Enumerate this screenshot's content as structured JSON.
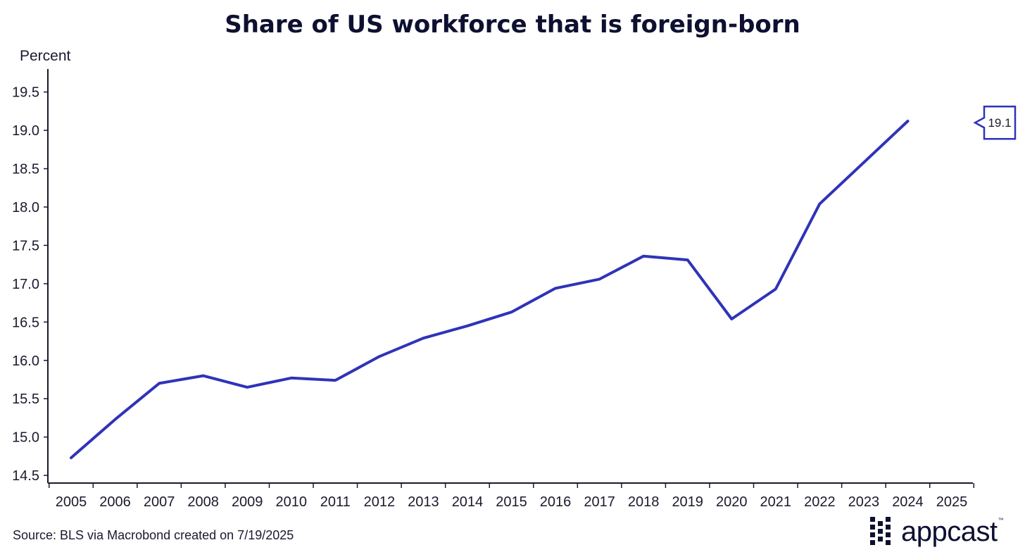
{
  "chart_data": {
    "type": "line",
    "title": "Share of US workforce that is foreign-born",
    "ylabel": "Percent",
    "xlabel": "",
    "ylim": [
      14.4,
      19.8
    ],
    "yticks": [
      14.5,
      15.0,
      15.5,
      16.0,
      16.5,
      17.0,
      17.5,
      18.0,
      18.5,
      19.0,
      19.5
    ],
    "xticks": [
      "2005",
      "2006",
      "2007",
      "2008",
      "2009",
      "2010",
      "2011",
      "2012",
      "2013",
      "2014",
      "2015",
      "2016",
      "2017",
      "2018",
      "2019",
      "2020",
      "2021",
      "2022",
      "2023",
      "2024",
      "2025"
    ],
    "grid": false,
    "legend": "none",
    "series": [
      {
        "color": "#2f33b8",
        "x": [
          "2005",
          "2006",
          "2007",
          "2008",
          "2009",
          "2010",
          "2011",
          "2012",
          "2013",
          "2014",
          "2015",
          "2016",
          "2017",
          "2018",
          "2019",
          "2020",
          "2021",
          "2022",
          "2023",
          "2024"
        ],
        "values": [
          14.73,
          15.23,
          15.7,
          15.8,
          15.65,
          15.77,
          15.74,
          16.05,
          16.29,
          16.45,
          16.63,
          16.94,
          17.06,
          17.36,
          17.31,
          16.54,
          16.93,
          18.04,
          18.58,
          19.12
        ]
      }
    ],
    "annotations": [
      {
        "text": "19.1",
        "value": 19.1,
        "position": "right-edge"
      }
    ]
  },
  "footer": {
    "source": "Source: BLS via Macrobond created on 7/19/2025",
    "logo_text": "appcast",
    "logo_mark": "™"
  }
}
